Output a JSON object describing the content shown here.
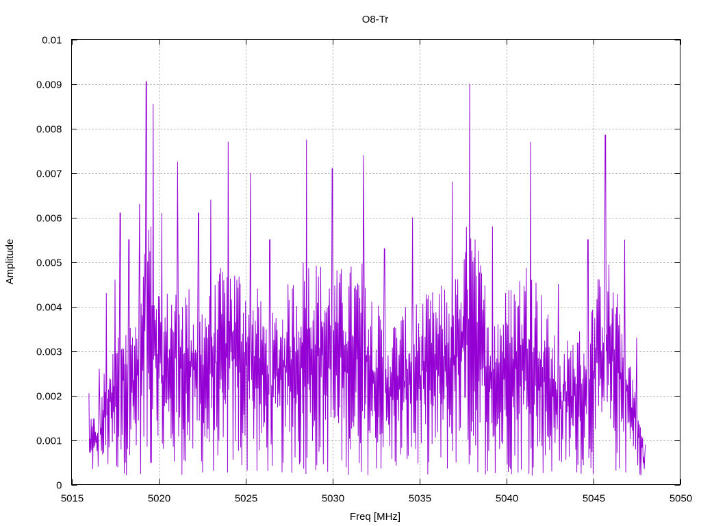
{
  "chart_data": {
    "type": "line",
    "title": "O8-Tr",
    "xlabel": "Freq [MHz]",
    "ylabel": "Amplitude",
    "xlim": [
      5015,
      5050
    ],
    "ylim": [
      0,
      0.01
    ],
    "xticks": [
      "5015",
      "5020",
      "5025",
      "5030",
      "5035",
      "5040",
      "5045",
      "5050"
    ],
    "yticks": [
      "0",
      "0.001",
      "0.002",
      "0.003",
      "0.004",
      "0.005",
      "0.006",
      "0.007",
      "0.008",
      "0.009",
      "0.01"
    ],
    "grid": true,
    "legend": "none",
    "series": [
      {
        "color": "#9400d3",
        "x_start": 5016.0,
        "x_end": 5048.0,
        "points_count": 1024,
        "envelope_peaks": [
          {
            "x": 5016.0,
            "y": 0.00205
          },
          {
            "x": 5016.6,
            "y": 0.0026
          },
          {
            "x": 5017.0,
            "y": 0.0043
          },
          {
            "x": 5017.5,
            "y": 0.0046
          },
          {
            "x": 5017.8,
            "y": 0.0061
          },
          {
            "x": 5018.3,
            "y": 0.0055
          },
          {
            "x": 5018.9,
            "y": 0.0063
          },
          {
            "x": 5019.3,
            "y": 0.00905
          },
          {
            "x": 5019.7,
            "y": 0.00855
          },
          {
            "x": 5020.2,
            "y": 0.0061
          },
          {
            "x": 5021.1,
            "y": 0.00725
          },
          {
            "x": 5022.3,
            "y": 0.0061
          },
          {
            "x": 5023.0,
            "y": 0.0064
          },
          {
            "x": 5024.0,
            "y": 0.0077
          },
          {
            "x": 5025.3,
            "y": 0.007
          },
          {
            "x": 5026.4,
            "y": 0.0055
          },
          {
            "x": 5028.5,
            "y": 0.00775
          },
          {
            "x": 5030.0,
            "y": 0.0071
          },
          {
            "x": 5031.8,
            "y": 0.0074
          },
          {
            "x": 5033.0,
            "y": 0.0053
          },
          {
            "x": 5034.6,
            "y": 0.006
          },
          {
            "x": 5036.9,
            "y": 0.0068
          },
          {
            "x": 5037.9,
            "y": 0.009
          },
          {
            "x": 5039.2,
            "y": 0.0058
          },
          {
            "x": 5041.4,
            "y": 0.0077
          },
          {
            "x": 5043.0,
            "y": 0.0045
          },
          {
            "x": 5044.7,
            "y": 0.0055
          },
          {
            "x": 5045.7,
            "y": 0.00785
          },
          {
            "x": 5046.8,
            "y": 0.0055
          },
          {
            "x": 5047.5,
            "y": 0.0033
          },
          {
            "x": 5048.0,
            "y": 0.0009
          }
        ],
        "noise_floor_typical": [
          0.0002,
          0.0025
        ]
      }
    ]
  }
}
